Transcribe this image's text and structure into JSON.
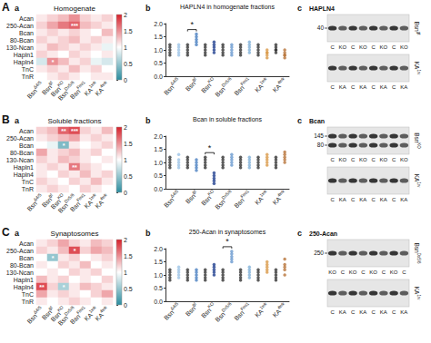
{
  "chart_data": [
    {
      "type": "heatmap",
      "panel_label": "A",
      "sub_label": "a",
      "title": "Homogenate",
      "categories": [
        {
          "text": "Bsn",
          "sup": "Δ4/5"
        },
        {
          "text": "Bsn",
          "sup": "gt"
        },
        {
          "text": "Bsn",
          "sup": "KO"
        },
        {
          "text": "Bsn",
          "sup": "Dx5/6"
        },
        {
          "text": "Bsn",
          "sup": "Fmi1"
        },
        {
          "text": "KA",
          "sup": "1wk"
        },
        {
          "text": "KA",
          "sup": "4wk"
        }
      ],
      "rows": [
        "Acan",
        "250-Acan",
        "Bcan",
        "80-Bcan",
        "130-Ncan",
        "Hapln1",
        "Hapln4",
        "TnC",
        "TnR"
      ],
      "cells": [
        [
          1.1,
          1.2,
          1.3,
          1.5,
          1.2,
          1.1,
          1.2
        ],
        [
          1.2,
          1.4,
          1.6,
          1.7,
          1.3,
          1.2,
          1.1
        ],
        [
          1.1,
          1.2,
          1.1,
          1.2,
          1.1,
          1.0,
          1.3
        ],
        [
          1.2,
          1.1,
          1.2,
          1.3,
          1.1,
          1.2,
          1.1
        ],
        [
          1.1,
          1.3,
          1.2,
          1.1,
          1.2,
          1.1,
          0.9
        ],
        [
          1.2,
          1.1,
          1.0,
          1.2,
          1.1,
          1.0,
          1.1
        ],
        [
          0.8,
          1.5,
          1.3,
          1.1,
          1.2,
          0.9,
          0.8
        ],
        [
          1.1,
          1.2,
          1.1,
          1.3,
          1.1,
          1.2,
          1.0
        ],
        [
          1.0,
          1.1,
          1.2,
          1.1,
          1.0,
          1.1,
          1.1
        ]
      ],
      "colormap": [
        "#2b8c9e",
        "#ffffff",
        "#d6202a"
      ],
      "color_range": [
        0,
        2
      ],
      "color_ticks": [
        0,
        0.5,
        1,
        1.5,
        2
      ],
      "annotations": [
        {
          "row": 1,
          "col": 3,
          "text": "***"
        },
        {
          "row": 6,
          "col": 1,
          "text": "*"
        }
      ]
    },
    {
      "type": "scatter",
      "panel_label": "A",
      "sub_label": "b",
      "title": "HAPLN4 in homogenate fractions",
      "categories": [
        null,
        {
          "text": "Bsn",
          "sup": "Δ4/5"
        },
        null,
        {
          "text": "Bsn",
          "sup": "gt"
        },
        null,
        {
          "text": "Bsn",
          "sup": "KO"
        },
        null,
        {
          "text": "Bsn",
          "sup": "Dx5/6"
        },
        null,
        {
          "text": "Bsn",
          "sup": "Fmi1"
        },
        null,
        {
          "text": "KA",
          "sup": "1wk"
        },
        null,
        {
          "text": "KA",
          "sup": "4wk"
        }
      ],
      "values": [
        [
          1.0,
          0.8,
          1.2,
          0.9,
          1.1
        ],
        [
          0.9,
          1.2,
          0.8,
          1.0,
          1.1
        ],
        [
          1.0,
          0.9,
          1.1,
          0.8,
          1.2
        ],
        [
          1.3,
          1.5,
          1.2,
          1.4,
          1.6
        ],
        [
          1.0,
          1.1,
          0.9,
          1.2,
          0.8
        ],
        [
          1.1,
          0.9,
          1.3,
          1.0,
          1.2
        ],
        [
          0.9,
          1.0,
          1.1,
          1.2,
          0.8
        ],
        [
          1.0,
          1.2,
          0.8,
          1.1,
          0.9
        ],
        [
          1.0,
          1.1,
          0.9,
          1.2,
          0.8
        ],
        [
          1.1,
          1.3,
          0.9,
          1.0,
          1.2
        ],
        [
          1.0,
          0.9,
          1.1,
          1.2,
          0.8
        ],
        [
          0.9,
          0.8,
          1.0,
          0.7,
          0.9
        ],
        [
          1.0,
          1.1,
          0.9,
          1.0,
          1.2
        ],
        [
          0.8,
          0.9,
          0.7,
          0.8,
          1.0
        ]
      ],
      "colors": [
        "#333333",
        "#9cc3e6",
        "#333333",
        "#4a7fc1",
        "#333333",
        "#1f3f8f",
        "#333333",
        "#6a9ad0",
        "#333333",
        "#7fb0d8",
        "#333333",
        "#d99a4a",
        "#333333",
        "#b8743a"
      ],
      "ylim": [
        0,
        2
      ],
      "yticks": [
        {
          "value": 0,
          "label": "0.0"
        },
        {
          "value": 0.5,
          "label": "0.5"
        },
        {
          "value": 1,
          "label": "1.0"
        },
        {
          "value": 1.5,
          "label": "1.5"
        },
        {
          "value": 2,
          "label": "2.0"
        }
      ],
      "annotations": [
        {
          "between": [
            2,
            3
          ],
          "text": "*"
        }
      ]
    },
    {
      "type": "heatmap",
      "panel_label": "B",
      "sub_label": "a",
      "title": "Soluble fractions",
      "categories": [
        {
          "text": "Bsn",
          "sup": "Δ4/5"
        },
        {
          "text": "Bsn",
          "sup": "gt"
        },
        {
          "text": "Bsn",
          "sup": "KO"
        },
        {
          "text": "Bsn",
          "sup": "Dx5/6"
        },
        {
          "text": "Bsn",
          "sup": "Fmi1"
        },
        {
          "text": "KA",
          "sup": "1wk"
        },
        {
          "text": "KA",
          "sup": "4wk"
        }
      ],
      "rows": [
        "Acan",
        "250-Acan",
        "Bcan",
        "80-Bcan",
        "130-Ncan",
        "Hapln1",
        "Hapln4",
        "TnC",
        "TnR"
      ],
      "cells": [
        [
          1.2,
          1.3,
          1.7,
          1.8,
          1.2,
          1.1,
          1.3
        ],
        [
          1.1,
          1.2,
          1.3,
          1.4,
          1.1,
          1.2,
          1.1
        ],
        [
          1.0,
          0.9,
          0.4,
          1.1,
          1.0,
          1.1,
          1.2
        ],
        [
          1.4,
          1.1,
          1.2,
          1.3,
          1.1,
          1.2,
          1.0
        ],
        [
          1.2,
          1.1,
          1.3,
          1.2,
          1.1,
          1.0,
          1.1
        ],
        [
          1.1,
          1.2,
          1.1,
          1.6,
          1.2,
          1.1,
          1.0
        ],
        [
          1.1,
          1.0,
          1.2,
          1.1,
          1.3,
          1.1,
          1.2
        ],
        [
          1.2,
          1.1,
          1.0,
          1.2,
          1.1,
          1.3,
          1.1
        ],
        [
          1.1,
          1.2,
          1.1,
          1.0,
          1.2,
          1.1,
          1.0
        ]
      ],
      "colormap": [
        "#2b8c9e",
        "#ffffff",
        "#d6202a"
      ],
      "color_range": [
        0,
        2
      ],
      "color_ticks": [
        0,
        0.5,
        1,
        1.5,
        2
      ],
      "annotations": [
        {
          "row": 0,
          "col": 2,
          "text": "**"
        },
        {
          "row": 0,
          "col": 3,
          "text": "***"
        },
        {
          "row": 2,
          "col": 2,
          "text": "*"
        },
        {
          "row": 5,
          "col": 3,
          "text": "**"
        }
      ]
    },
    {
      "type": "scatter",
      "panel_label": "B",
      "sub_label": "b",
      "title": "Bcan in soluble fractions",
      "categories": [
        null,
        {
          "text": "Bsn",
          "sup": "Δ4/5"
        },
        null,
        {
          "text": "Bsn",
          "sup": "gt"
        },
        null,
        {
          "text": "Bsn",
          "sup": "KO"
        },
        null,
        {
          "text": "Bsn",
          "sup": "Dx5/6"
        },
        null,
        {
          "text": "Bsn",
          "sup": "Fmi1"
        },
        null,
        {
          "text": "KA",
          "sup": "1wk"
        },
        null,
        {
          "text": "KA",
          "sup": "4wk"
        }
      ],
      "values": [
        [
          1.0,
          0.8,
          1.2,
          0.9,
          1.1
        ],
        [
          1.0,
          1.3,
          0.8,
          0.9,
          1.1
        ],
        [
          1.1,
          0.9,
          1.0,
          1.2,
          0.8
        ],
        [
          0.9,
          1.1,
          0.7,
          1.0,
          0.8
        ],
        [
          1.0,
          1.2,
          0.9,
          0.8,
          1.1
        ],
        [
          0.3,
          0.5,
          0.4,
          0.2,
          0.6
        ],
        [
          1.0,
          0.9,
          1.1,
          1.2,
          0.8
        ],
        [
          1.1,
          1.3,
          0.9,
          1.0,
          1.2
        ],
        [
          0.9,
          1.0,
          1.1,
          1.2,
          0.8
        ],
        [
          1.0,
          1.1,
          0.9,
          0.8,
          1.2
        ],
        [
          1.0,
          1.1,
          0.9,
          1.2,
          0.8
        ],
        [
          1.1,
          1.2,
          1.0,
          0.9,
          1.3
        ],
        [
          1.0,
          0.9,
          1.1,
          1.2,
          0.8
        ],
        [
          1.2,
          1.1,
          1.3,
          1.0,
          1.4
        ]
      ],
      "colors": [
        "#333333",
        "#9cc3e6",
        "#333333",
        "#4a7fc1",
        "#333333",
        "#1f3f8f",
        "#333333",
        "#6a9ad0",
        "#333333",
        "#7fb0d8",
        "#333333",
        "#d99a4a",
        "#333333",
        "#b8743a"
      ],
      "ylim": [
        0,
        2
      ],
      "yticks": [
        {
          "value": 0,
          "label": "0.0"
        },
        {
          "value": 0.5,
          "label": "0.5"
        },
        {
          "value": 1,
          "label": "1.0"
        },
        {
          "value": 1.5,
          "label": "1.5"
        },
        {
          "value": 2,
          "label": "2.0"
        }
      ],
      "annotations": [
        {
          "between": [
            4,
            5
          ],
          "text": "*"
        }
      ]
    },
    {
      "type": "heatmap",
      "panel_label": "C",
      "sub_label": "a",
      "title": "Synaptosomes",
      "categories": [
        {
          "text": "Bsn",
          "sup": "Δ4/5"
        },
        {
          "text": "Bsn",
          "sup": "gt"
        },
        {
          "text": "Bsn",
          "sup": "KO"
        },
        {
          "text": "Bsn",
          "sup": "Dx5/6"
        },
        {
          "text": "Bsn",
          "sup": "Fmi1"
        },
        {
          "text": "KA",
          "sup": "1wk"
        },
        {
          "text": "KA",
          "sup": "4wk"
        }
      ],
      "rows": [
        "Acan",
        "250-Acan",
        "Bcan",
        "80-Bcan",
        "130-Ncan",
        "Hapln1",
        "Hapln4",
        "TnC",
        "TnR"
      ],
      "cells": [
        [
          1.1,
          1.2,
          1.4,
          1.2,
          1.1,
          1.3,
          1.2
        ],
        [
          1.2,
          1.1,
          1.3,
          1.8,
          1.2,
          1.4,
          1.3
        ],
        [
          1.0,
          0.5,
          1.1,
          1.2,
          1.0,
          1.1,
          1.2
        ],
        [
          1.1,
          1.0,
          1.2,
          1.1,
          1.3,
          1.0,
          1.1
        ],
        [
          1.0,
          1.1,
          1.0,
          1.2,
          1.1,
          1.2,
          1.0
        ],
        [
          1.3,
          1.1,
          1.2,
          1.0,
          1.1,
          1.0,
          1.2
        ],
        [
          1.8,
          1.2,
          0.6,
          1.1,
          1.3,
          1.2,
          1.1
        ],
        [
          1.4,
          1.1,
          1.2,
          1.1,
          1.0,
          1.2,
          1.4
        ],
        [
          1.1,
          1.0,
          1.1,
          1.2,
          1.1,
          1.0,
          1.1
        ]
      ],
      "colormap": [
        "#2b8c9e",
        "#ffffff",
        "#d6202a"
      ],
      "color_range": [
        0,
        2
      ],
      "color_ticks": [
        0,
        0.5,
        1,
        1.5,
        2
      ],
      "annotations": [
        {
          "row": 1,
          "col": 3,
          "text": "*"
        },
        {
          "row": 2,
          "col": 1,
          "text": "*"
        },
        {
          "row": 6,
          "col": 0,
          "text": "**"
        },
        {
          "row": 6,
          "col": 2,
          "text": "*"
        }
      ]
    },
    {
      "type": "scatter",
      "panel_label": "C",
      "sub_label": "b",
      "title": "250-Acan in synaptosomes",
      "categories": [
        null,
        {
          "text": "Bsn",
          "sup": "Δ4/5"
        },
        null,
        {
          "text": "Bsn",
          "sup": "gt"
        },
        null,
        {
          "text": "Bsn",
          "sup": "KO"
        },
        null,
        {
          "text": "Bsn",
          "sup": "Dx5/6"
        },
        null,
        {
          "text": "Bsn",
          "sup": "Fmi1"
        },
        null,
        {
          "text": "KA",
          "sup": "1wk"
        },
        null,
        {
          "text": "KA",
          "sup": "4wk"
        }
      ],
      "values": [
        [
          1.0,
          0.8,
          1.2,
          0.9,
          1.1
        ],
        [
          1.1,
          1.3,
          0.9,
          1.2,
          1.0
        ],
        [
          1.0,
          0.9,
          1.1,
          1.2,
          0.8
        ],
        [
          1.0,
          1.2,
          0.9,
          1.1,
          0.8
        ],
        [
          1.0,
          1.1,
          0.9,
          1.2,
          0.8
        ],
        [
          1.2,
          1.4,
          1.1,
          1.3,
          1.0
        ],
        [
          1.0,
          0.9,
          1.1,
          0.8,
          1.2
        ],
        [
          1.6,
          1.9,
          1.5,
          1.8,
          1.7
        ],
        [
          1.0,
          1.1,
          0.9,
          1.2,
          0.8
        ],
        [
          1.1,
          1.3,
          1.0,
          1.2,
          0.9
        ],
        [
          1.0,
          0.9,
          1.1,
          1.2,
          0.8
        ],
        [
          1.3,
          1.5,
          1.1,
          1.4,
          1.2
        ],
        [
          1.0,
          1.1,
          0.9,
          0.8,
          1.2
        ],
        [
          1.2,
          1.6,
          1.0,
          1.4,
          1.3
        ]
      ],
      "colors": [
        "#333333",
        "#9cc3e6",
        "#333333",
        "#4a7fc1",
        "#333333",
        "#1f3f8f",
        "#333333",
        "#6a9ad0",
        "#333333",
        "#7fb0d8",
        "#333333",
        "#d99a4a",
        "#333333",
        "#b8743a"
      ],
      "ylim": [
        0,
        2
      ],
      "yticks": [
        {
          "value": 0,
          "label": "0.0"
        },
        {
          "value": 0.5,
          "label": "0.5"
        },
        {
          "value": 1,
          "label": "1.0"
        },
        {
          "value": 1.5,
          "label": "1.5"
        },
        {
          "value": 2,
          "label": "2.0"
        }
      ],
      "annotations": [
        {
          "between": [
            6,
            7
          ],
          "text": "*"
        }
      ]
    }
  ],
  "blots": [
    {
      "panel_label": "A",
      "sub_label": "c",
      "title": "HAPLN4",
      "strips": [
        {
          "markers": [
            40
          ],
          "label": {
            "text": "Bsn",
            "sup": "gt"
          },
          "lanes": [
            "C",
            "KO",
            "C",
            "KO",
            "C",
            "KO",
            "C",
            "KO"
          ]
        },
        {
          "markers": [],
          "label": {
            "text": "KA",
            "sup": "1w"
          },
          "lanes": [
            "C",
            "KA",
            "C",
            "KA",
            "C",
            "KA",
            "C",
            "KA"
          ]
        }
      ]
    },
    {
      "panel_label": "B",
      "sub_label": "c",
      "title": "Bcan",
      "strips": [
        {
          "markers": [
            145,
            80
          ],
          "label": {
            "text": "Bsn",
            "sup": "KO"
          },
          "lanes": [
            "C",
            "KO",
            "C",
            "KO",
            "C",
            "KO",
            "C",
            "KO"
          ]
        },
        {
          "markers": [],
          "label": {
            "text": "KA",
            "sup": "1w"
          },
          "lanes": [
            "C",
            "KA",
            "C",
            "KA",
            "C",
            "KA",
            "C",
            "KA"
          ]
        }
      ]
    },
    {
      "panel_label": "C",
      "sub_label": "c",
      "title": "250-Acan",
      "strips": [
        {
          "markers": [
            250
          ],
          "label": {
            "text": "Bsn",
            "sup": "Dx5/6"
          },
          "lanes": [
            "KO",
            "C",
            "KO",
            "C",
            "KO",
            "C",
            "KO",
            "C"
          ]
        },
        {
          "markers": [],
          "label": {
            "text": "KA",
            "sup": "1w"
          },
          "lanes": [
            "C",
            "KA",
            "C",
            "KA",
            "C",
            "KA",
            "C",
            "KA"
          ]
        }
      ]
    }
  ]
}
